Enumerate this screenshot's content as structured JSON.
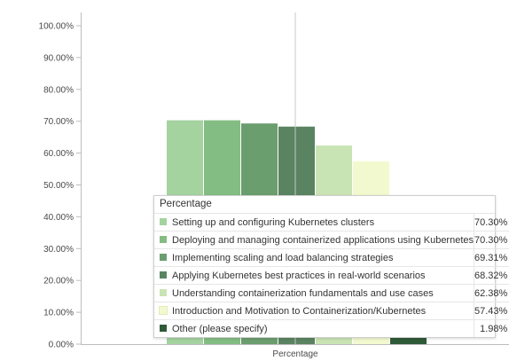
{
  "chart_data": {
    "type": "bar",
    "title": "",
    "xlabel": "",
    "ylabel": "",
    "categories": [
      "Percentage"
    ],
    "ylim": [
      0,
      100
    ],
    "y_ticks": [
      "0.00%",
      "10.00%",
      "20.00%",
      "30.00%",
      "40.00%",
      "50.00%",
      "60.00%",
      "70.00%",
      "80.00%",
      "90.00%",
      "100.00%"
    ],
    "y_tick_values": [
      0,
      10,
      20,
      30,
      40,
      50,
      60,
      70,
      80,
      90,
      100
    ],
    "grid": false,
    "series": [
      {
        "name": "Setting up and configuring Kubernetes clusters",
        "values": [
          70.3
        ],
        "value_label": "70.30%",
        "color": "#a4d3a0"
      },
      {
        "name": "Deploying and managing containerized applications using Kubernetes",
        "values": [
          70.3
        ],
        "value_label": "70.30%",
        "color": "#83bd83"
      },
      {
        "name": "Implementing scaling and load balancing strategies",
        "values": [
          69.31
        ],
        "value_label": "69.31%",
        "color": "#6b9e6e"
      },
      {
        "name": "Applying Kubernetes best practices in real-world scenarios",
        "values": [
          68.32
        ],
        "value_label": "68.32%",
        "color": "#5a8461"
      },
      {
        "name": "Understanding containerization fundamentals and use cases",
        "values": [
          62.38
        ],
        "value_label": "62.38%",
        "color": "#c9e4b4"
      },
      {
        "name": "Introduction and Motivation to Containerization/Kubernetes",
        "values": [
          57.43
        ],
        "value_label": "57.43%",
        "color": "#f3f9cf"
      },
      {
        "name": "Other (please specify)",
        "values": [
          1.98
        ],
        "value_label": "1.98%",
        "color": "#2f5a37"
      }
    ]
  },
  "tooltip": {
    "header": "Percentage"
  }
}
